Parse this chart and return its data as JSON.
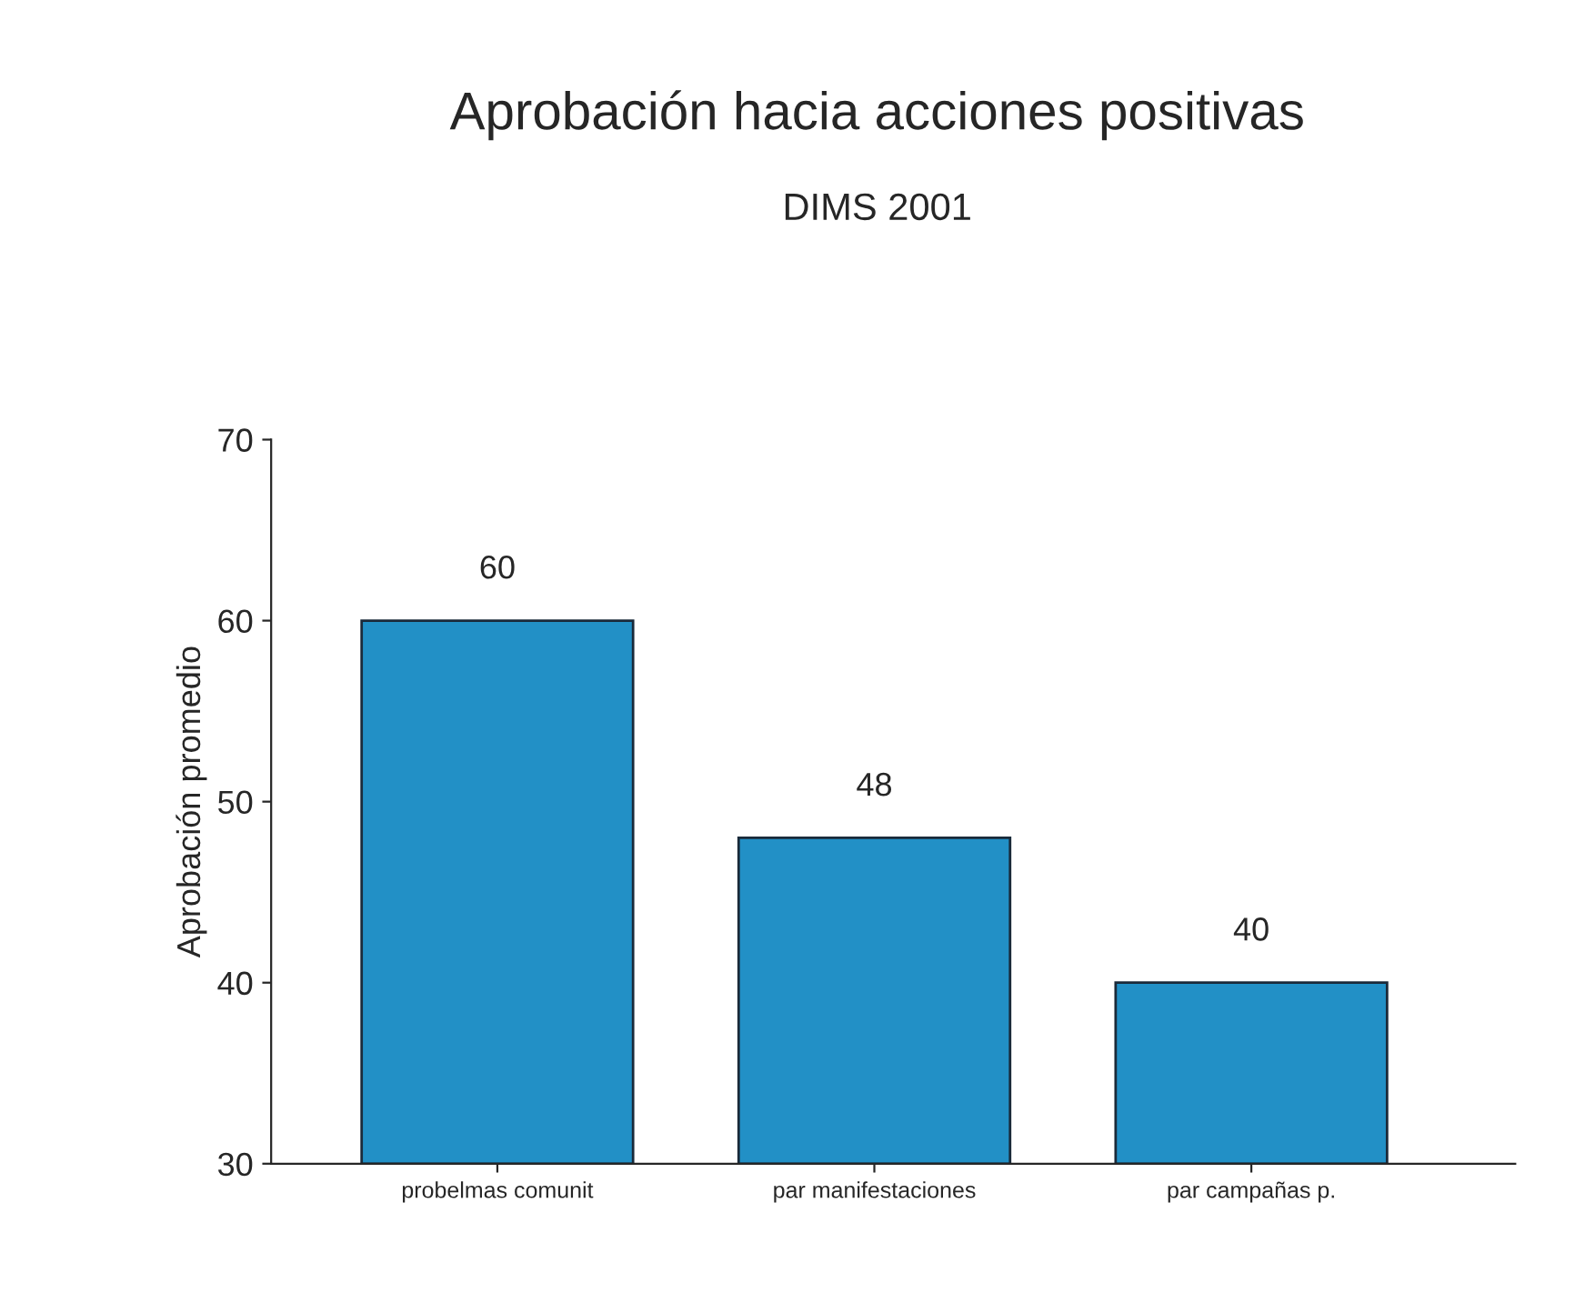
{
  "chart_data": {
    "type": "bar",
    "title": "Aprobación hacia acciones positivas",
    "subtitle": "DIMS 2001",
    "ylabel": "Aprobación promedio",
    "categories": [
      "probelmas comunit",
      "par manifestaciones",
      "par campañas p."
    ],
    "values": [
      60,
      48,
      40
    ],
    "color": "#2290c6",
    "ylim": [
      30,
      70
    ],
    "yticks": [
      30,
      40,
      50,
      60,
      70
    ],
    "grid": false,
    "data_labels": true
  }
}
